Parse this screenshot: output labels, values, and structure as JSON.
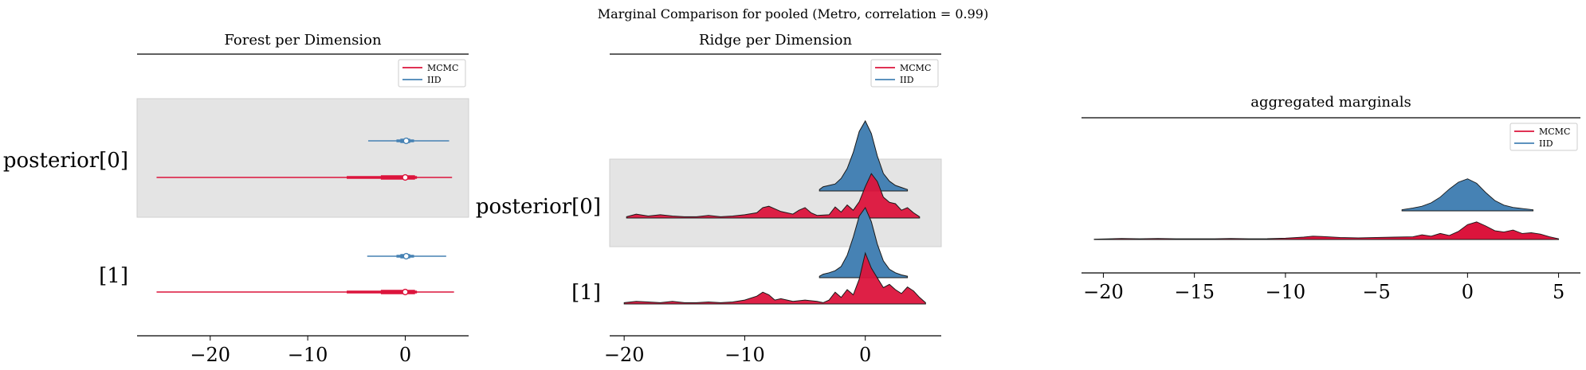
{
  "figure": {
    "suptitle": "Marginal Comparison for pooled (Metro, correlation = 0.99)"
  },
  "colors": {
    "mcmc": "#dc143c",
    "iid": "#4682b4",
    "highlight": "#e4e4e4"
  },
  "chart_data": [
    {
      "type": "forest",
      "title": "Forest per Dimension",
      "xlim": [
        -27.5,
        6.5
      ],
      "xticks": [
        -20,
        -10,
        0
      ],
      "xtick_labels": [
        "−20",
        "−10",
        "0"
      ],
      "dimensions": [
        "posterior[0]",
        "[1]"
      ],
      "highlight": "posterior[0]",
      "legend": {
        "position": "top-right",
        "entries": [
          "MCMC",
          "IID"
        ]
      },
      "series": [
        {
          "name": "MCMC",
          "color": "#dc143c",
          "intervals": [
            {
              "dim": "posterior[0]",
              "hdi": [
                -25.5,
                4.8
              ],
              "iqr": [
                -6,
                1.2
              ],
              "q": [
                -2.5,
                1.0
              ],
              "median": 0.0
            },
            {
              "dim": "[1]",
              "hdi": [
                -25.5,
                5.0
              ],
              "iqr": [
                -6,
                1.2
              ],
              "q": [
                -2.5,
                1.0
              ],
              "median": 0.0
            }
          ]
        },
        {
          "name": "IID",
          "color": "#4682b4",
          "intervals": [
            {
              "dim": "posterior[0]",
              "hdi": [
                -3.8,
                4.5
              ],
              "iqr": [
                -0.9,
                0.9
              ],
              "q": [
                -0.5,
                0.5
              ],
              "median": 0.1
            },
            {
              "dim": "[1]",
              "hdi": [
                -3.9,
                4.2
              ],
              "iqr": [
                -0.9,
                0.9
              ],
              "q": [
                -0.5,
                0.5
              ],
              "median": 0.1
            }
          ]
        }
      ]
    },
    {
      "type": "ridge",
      "title": "Ridge per Dimension",
      "xlim": [
        -21.2,
        6.3
      ],
      "xticks": [
        -20,
        -10,
        0
      ],
      "xtick_labels": [
        "−20",
        "−10",
        "0"
      ],
      "dimensions": [
        "posterior[0]",
        "[1]"
      ],
      "highlight": "posterior[0]",
      "legend": {
        "position": "top-right",
        "entries": [
          "MCMC",
          "IID"
        ]
      },
      "series": [
        {
          "name": "MCMC",
          "color": "#dc143c",
          "densities": [
            {
              "dim": "posterior[0]",
              "x": [
                -19.8,
                -19,
                -18,
                -17,
                -16,
                -15,
                -14,
                -13,
                -12,
                -11,
                -10,
                -9,
                -8.5,
                -8,
                -7,
                -6,
                -5.5,
                -5,
                -4.5,
                -4,
                -3,
                -2.5,
                -2,
                -1.5,
                -1,
                -0.5,
                0,
                0.5,
                1,
                1.5,
                2,
                2.5,
                3,
                3.5,
                4,
                4.5
              ],
              "y": [
                0.02,
                0.06,
                0.03,
                0.05,
                0.03,
                0.02,
                0.02,
                0.04,
                0.02,
                0.03,
                0.05,
                0.08,
                0.16,
                0.18,
                0.1,
                0.06,
                0.12,
                0.16,
                0.08,
                0.04,
                0.05,
                0.17,
                0.09,
                0.2,
                0.12,
                0.25,
                0.48,
                0.68,
                0.56,
                0.32,
                0.24,
                0.22,
                0.12,
                0.16,
                0.08,
                0.02
              ]
            },
            {
              "dim": "[1]",
              "x": [
                -20,
                -19,
                -18,
                -17,
                -16,
                -15,
                -14,
                -13,
                -12,
                -11,
                -10,
                -9,
                -8.5,
                -8,
                -7.5,
                -7,
                -6,
                -5,
                -4,
                -3.5,
                -3,
                -2.5,
                -2,
                -1.5,
                -1,
                -0.5,
                0,
                0.5,
                1,
                1.5,
                2,
                2.5,
                3,
                3.5,
                4,
                4.5,
                5
              ],
              "y": [
                0.02,
                0.04,
                0.03,
                0.02,
                0.04,
                0.02,
                0.02,
                0.03,
                0.02,
                0.03,
                0.06,
                0.12,
                0.18,
                0.14,
                0.06,
                0.08,
                0.04,
                0.06,
                0.04,
                0.02,
                0.06,
                0.18,
                0.1,
                0.22,
                0.14,
                0.38,
                0.78,
                0.55,
                0.4,
                0.25,
                0.3,
                0.22,
                0.16,
                0.26,
                0.2,
                0.1,
                0.02
              ]
            }
          ]
        },
        {
          "name": "IID",
          "color": "#4682b4",
          "densities": [
            {
              "dim": "posterior[0]",
              "x": [
                -3.8,
                -3.5,
                -3,
                -2.5,
                -2,
                -1.5,
                -1,
                -0.5,
                0,
                0.5,
                1,
                1.5,
                2,
                2.5,
                3,
                3.5
              ],
              "y": [
                0.02,
                0.06,
                0.08,
                0.1,
                0.18,
                0.32,
                0.55,
                0.85,
                1.0,
                0.82,
                0.5,
                0.25,
                0.14,
                0.08,
                0.05,
                0.02
              ]
            },
            {
              "dim": "[1]",
              "x": [
                -3.8,
                -3.5,
                -3,
                -2.5,
                -2,
                -1.5,
                -1,
                -0.5,
                0,
                0.5,
                1,
                1.5,
                2,
                2.5,
                3,
                3.5
              ],
              "y": [
                0.02,
                0.05,
                0.07,
                0.1,
                0.16,
                0.32,
                0.58,
                0.88,
                1.0,
                0.8,
                0.48,
                0.24,
                0.12,
                0.07,
                0.04,
                0.02
              ]
            }
          ]
        }
      ]
    },
    {
      "type": "area",
      "title": "aggregated marginals",
      "xlim": [
        -21.2,
        6.2
      ],
      "xticks": [
        -20,
        -15,
        -10,
        -5,
        0,
        5
      ],
      "xtick_labels": [
        "−20",
        "−15",
        "−10",
        "−5",
        "0",
        "5"
      ],
      "legend": {
        "position": "top-right",
        "entries": [
          "MCMC",
          "IID"
        ]
      },
      "series": [
        {
          "name": "MCMC",
          "color": "#dc143c",
          "x": [
            -20.5,
            -19,
            -18,
            -17,
            -16,
            -15,
            -14,
            -13,
            -12,
            -11,
            -10,
            -9,
            -8.5,
            -8,
            -7,
            -6,
            -5,
            -4,
            -3,
            -2.5,
            -2,
            -1.5,
            -1,
            -0.5,
            0,
            0.5,
            1,
            1.5,
            2,
            2.5,
            3,
            3.5,
            4,
            4.5,
            5
          ],
          "y": [
            0.005,
            0.015,
            0.01,
            0.015,
            0.01,
            0.01,
            0.01,
            0.015,
            0.01,
            0.012,
            0.02,
            0.035,
            0.05,
            0.045,
            0.03,
            0.025,
            0.03,
            0.035,
            0.04,
            0.07,
            0.05,
            0.09,
            0.06,
            0.12,
            0.22,
            0.26,
            0.2,
            0.13,
            0.11,
            0.14,
            0.09,
            0.1,
            0.08,
            0.04,
            0.01
          ]
        },
        {
          "name": "IID",
          "color": "#4682b4",
          "x": [
            -3.6,
            -3,
            -2.5,
            -2,
            -1.5,
            -1,
            -0.5,
            0,
            0.5,
            1,
            1.5,
            2,
            2.5,
            3,
            3.6
          ],
          "y": [
            0.02,
            0.05,
            0.08,
            0.14,
            0.24,
            0.38,
            0.5,
            0.56,
            0.48,
            0.32,
            0.18,
            0.1,
            0.06,
            0.04,
            0.02
          ]
        }
      ]
    }
  ]
}
